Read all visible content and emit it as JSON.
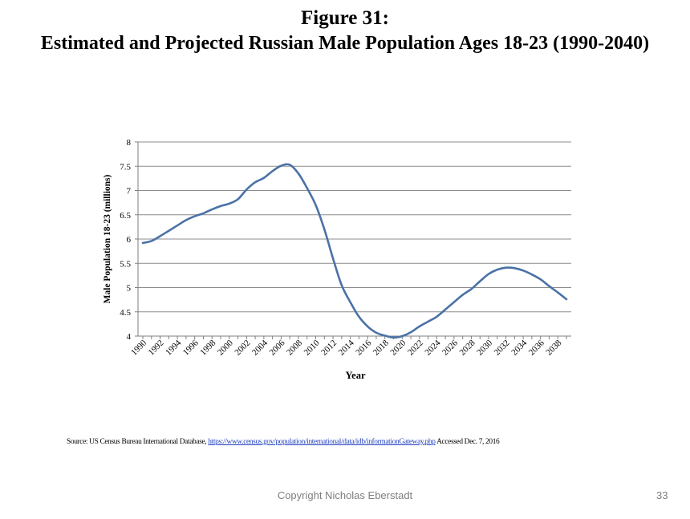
{
  "header": {
    "figure_label": "Figure 31:",
    "title": "Estimated and Projected Russian Male Population Ages 18-23 (1990-2040)"
  },
  "chart_data": {
    "type": "line",
    "title": "Estimated and Projected Russian Male Population Ages 18-23 (1990-2040)",
    "xlabel": "Year",
    "ylabel": "Male Population 18-23 (millions)",
    "ylim": [
      4,
      8
    ],
    "xlim": [
      1990,
      2039
    ],
    "yticks": [
      4,
      4.5,
      5,
      5.5,
      6,
      6.5,
      7,
      7.5,
      8
    ],
    "yticks_labels": [
      "4",
      "4.5",
      "5",
      "5.5",
      "6",
      "6.5",
      "7",
      "7.5",
      "8"
    ],
    "xticks_labels": [
      "1990",
      "1992",
      "1994",
      "1996",
      "1998",
      "2000",
      "2002",
      "2004",
      "2006",
      "2008",
      "2010",
      "2012",
      "2014",
      "2016",
      "2018",
      "2020",
      "2022",
      "2024",
      "2026",
      "2028",
      "2030",
      "2032",
      "2034",
      "2036",
      "2038"
    ],
    "grid": "horizontal",
    "legend": "none",
    "line_color": "#4a72a6",
    "series": [
      {
        "x": [
          1990,
          1991,
          1992,
          1993,
          1994,
          1995,
          1996,
          1997,
          1998,
          1999,
          2000,
          2001,
          2002,
          2003,
          2004,
          2005,
          2006,
          2007,
          2008,
          2009,
          2010,
          2011,
          2012,
          2013,
          2014,
          2015,
          2016,
          2017,
          2018,
          2019,
          2020,
          2021,
          2022,
          2023,
          2024,
          2025,
          2026,
          2027,
          2028,
          2029,
          2030,
          2031,
          2032,
          2033,
          2034,
          2035,
          2036,
          2037,
          2038,
          2039
        ],
        "values": [
          5.92,
          5.96,
          6.06,
          6.17,
          6.28,
          6.39,
          6.47,
          6.53,
          6.61,
          6.68,
          6.73,
          6.82,
          7.02,
          7.17,
          7.26,
          7.4,
          7.51,
          7.53,
          7.35,
          7.05,
          6.7,
          6.2,
          5.6,
          5.05,
          4.7,
          4.4,
          4.2,
          4.07,
          4.01,
          3.97,
          4.0,
          4.08,
          4.2,
          4.3,
          4.4,
          4.55,
          4.7,
          4.85,
          4.97,
          5.13,
          5.28,
          5.37,
          5.41,
          5.4,
          5.35,
          5.27,
          5.17,
          5.03,
          4.9,
          4.76
        ]
      }
    ]
  },
  "source": {
    "prefix": "Source: US Census Bureau International Database, ",
    "link": "https://www.census.gov/population/international/data/idb/informationGateway.php",
    "suffix": " Accessed Dec. 7, 2016"
  },
  "footer": {
    "copyright": "Copyright Nicholas Eberstadt",
    "page_number": "33"
  }
}
